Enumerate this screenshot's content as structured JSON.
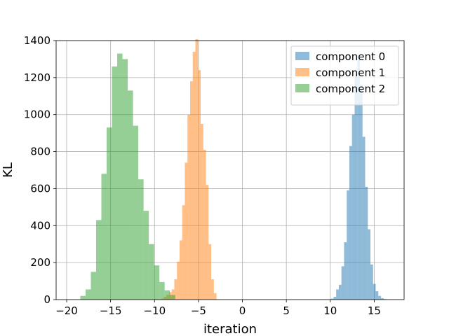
{
  "chart_data": {
    "type": "histogram",
    "title": "",
    "xlabel": "iteration",
    "ylabel": "KL",
    "xlim": [
      -21.2,
      18.4
    ],
    "ylim": [
      0,
      1400
    ],
    "xticks": [
      -20,
      -15,
      -10,
      -5,
      0,
      5,
      10,
      15
    ],
    "xtick_labels": [
      "−20",
      "−15",
      "−10",
      "−5",
      "0",
      "5",
      "10",
      "15"
    ],
    "yticks": [
      0,
      200,
      400,
      600,
      800,
      1000,
      1200,
      1400
    ],
    "ytick_labels": [
      "0",
      "200",
      "400",
      "600",
      "800",
      "1000",
      "1200",
      "1400"
    ],
    "grid": true,
    "legend": {
      "position": "top-right"
    },
    "series": [
      {
        "name": "component 0",
        "color": "#1f77b4",
        "alpha": 0.5,
        "bin_start": 10.07,
        "bin_width": 0.3,
        "counts": [
          5,
          15,
          55,
          80,
          180,
          310,
          590,
          830,
          1000,
          1210,
          1320,
          1160,
          880,
          610,
          380,
          190,
          85,
          45,
          20,
          8,
          3
        ]
      },
      {
        "name": "component 1",
        "color": "#ff7f0e",
        "alpha": 0.5,
        "bin_start": -9.25,
        "bin_width": 0.3,
        "counts": [
          5,
          15,
          25,
          40,
          55,
          110,
          205,
          320,
          510,
          740,
          1000,
          1180,
          1340,
          1430,
          1240,
          950,
          810,
          620,
          300,
          110,
          35
        ]
      },
      {
        "name": "component 2",
        "color": "#2ca02c",
        "alpha": 0.5,
        "bin_start": -18.45,
        "bin_width": 0.6,
        "counts": [
          20,
          55,
          150,
          430,
          680,
          930,
          1260,
          1330,
          1300,
          1130,
          940,
          650,
          480,
          300,
          185,
          95,
          50,
          25
        ]
      }
    ]
  }
}
